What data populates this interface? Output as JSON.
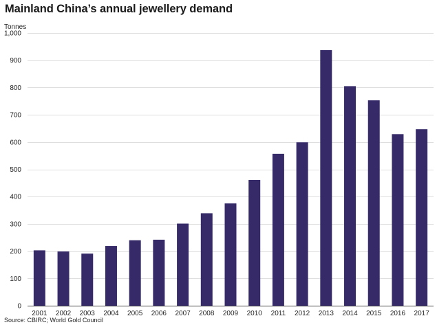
{
  "chart_data": {
    "type": "bar",
    "title": "Mainland China’s annual jewellery demand",
    "ylabel": "Tonnes",
    "xlabel": "",
    "categories": [
      "2001",
      "2002",
      "2003",
      "2004",
      "2005",
      "2006",
      "2007",
      "2008",
      "2009",
      "2010",
      "2011",
      "2012",
      "2013",
      "2014",
      "2015",
      "2016",
      "2017"
    ],
    "values": [
      203,
      199,
      191,
      219,
      240,
      242,
      301,
      339,
      375,
      461,
      557,
      599,
      937,
      805,
      753,
      629,
      647
    ],
    "ylim": [
      0,
      1000
    ],
    "yticks": [
      0,
      100,
      200,
      300,
      400,
      500,
      600,
      700,
      800,
      900,
      1000
    ],
    "ytick_labels": [
      "0",
      "100",
      "200",
      "300",
      "400",
      "500",
      "600",
      "700",
      "800",
      "900",
      "1,000"
    ],
    "grid": true,
    "bar_color": "#362a69",
    "source": "Source: CBIRC; World Gold Council"
  }
}
